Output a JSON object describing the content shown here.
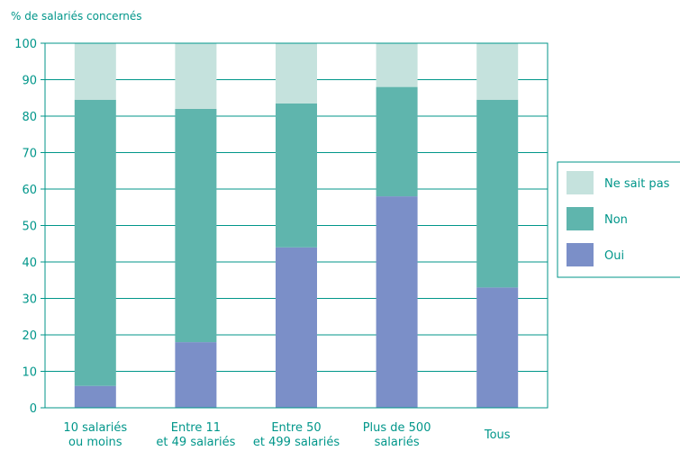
{
  "chart_data": {
    "type": "bar",
    "stacked": true,
    "ylabel": "% de salariés concernés",
    "ylim": [
      0,
      100
    ],
    "yticks": [
      0,
      10,
      20,
      30,
      40,
      50,
      60,
      70,
      80,
      90,
      100
    ],
    "grid": true,
    "legend_position": "right",
    "categories": [
      [
        "10 salariés",
        "ou moins"
      ],
      [
        "Entre 11",
        "et 49 salariés"
      ],
      [
        "Entre 50",
        "et 499 salariés"
      ],
      [
        "Plus de 500",
        "salariés"
      ],
      [
        "Tous"
      ]
    ],
    "series": [
      {
        "name": "Oui",
        "color": "#7b8fc8",
        "values": [
          6,
          18,
          44,
          58,
          33
        ]
      },
      {
        "name": "Non",
        "color": "#5fb5ad",
        "values": [
          78.5,
          64,
          39.5,
          30,
          51.5
        ]
      },
      {
        "name": "Ne sait pas",
        "color": "#c5e2dd",
        "values": [
          15.5,
          18,
          16.5,
          12,
          15.5
        ]
      }
    ],
    "legend_order": [
      "Ne sait pas",
      "Non",
      "Oui"
    ],
    "axis_color": "#00968a"
  }
}
